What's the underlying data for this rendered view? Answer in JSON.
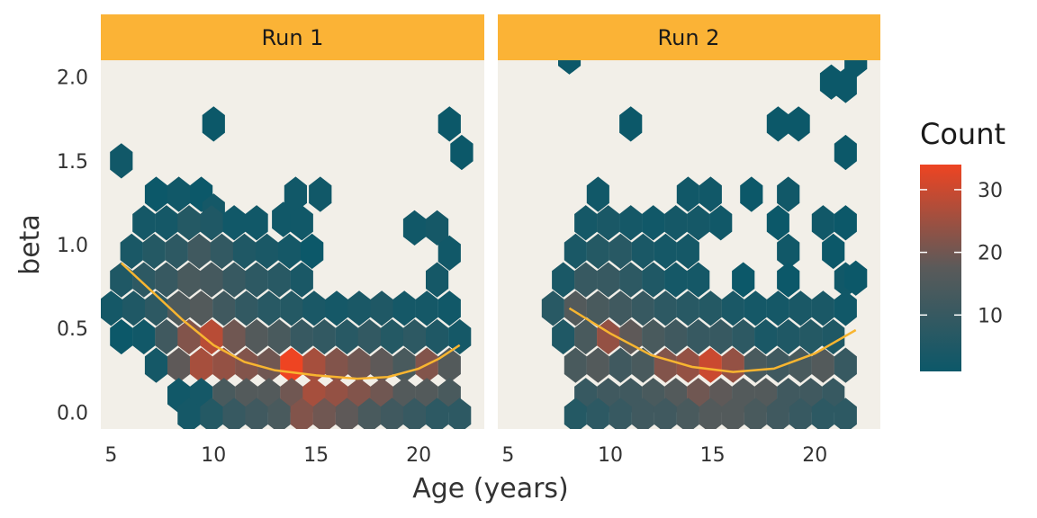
{
  "chart_data": {
    "type": "hexbin",
    "xlabel": "Age (years)",
    "ylabel": "beta",
    "xlim": [
      4.5,
      23.2
    ],
    "ylim": [
      -0.1,
      2.1
    ],
    "x_ticks": [
      5,
      10,
      15,
      20
    ],
    "y_ticks": [
      0.0,
      0.5,
      1.0,
      1.5,
      2.0
    ],
    "y_tick_labels": [
      "0.0",
      "0.5",
      "1.0",
      "1.5",
      "2.0"
    ],
    "grid": false,
    "hex_size": {
      "dx": 1.107,
      "dy": 0.17
    },
    "legend": {
      "title": "Count",
      "position": "right",
      "ticks": [
        10,
        20,
        30
      ],
      "range": [
        1,
        34
      ],
      "colors": {
        "low": "#0c5869",
        "mid": "#5a5a5a",
        "high": "#ee4422"
      }
    },
    "colors": {
      "panel_bg": "#f2efe8",
      "strip_bg": "#fbb336",
      "smooth_line": "#f8b530"
    },
    "panels": [
      {
        "label": "Run 1",
        "hexes": [
          [
            5.5,
            1.5,
            2
          ],
          [
            10.0,
            1.72,
            1
          ],
          [
            21.5,
            1.72,
            1
          ],
          [
            22.1,
            1.55,
            1
          ],
          [
            7.2,
            1.3,
            1
          ],
          [
            8.3,
            1.3,
            2
          ],
          [
            9.4,
            1.3,
            1
          ],
          [
            10.0,
            1.2,
            3
          ],
          [
            14.0,
            1.3,
            2
          ],
          [
            15.2,
            1.3,
            2
          ],
          [
            13.4,
            1.15,
            2
          ],
          [
            6.6,
            1.13,
            3
          ],
          [
            7.7,
            1.13,
            3
          ],
          [
            8.8,
            1.13,
            6
          ],
          [
            9.9,
            1.13,
            5
          ],
          [
            11.0,
            1.13,
            2
          ],
          [
            12.1,
            1.13,
            2
          ],
          [
            14.3,
            1.13,
            2
          ],
          [
            19.8,
            1.1,
            2
          ],
          [
            20.9,
            1.1,
            3
          ],
          [
            6.0,
            0.96,
            4
          ],
          [
            7.1,
            0.96,
            6
          ],
          [
            8.2,
            0.96,
            8
          ],
          [
            9.3,
            0.96,
            12
          ],
          [
            10.4,
            0.96,
            9
          ],
          [
            11.5,
            0.96,
            5
          ],
          [
            12.6,
            0.96,
            4
          ],
          [
            13.7,
            0.96,
            3
          ],
          [
            14.8,
            0.96,
            1
          ],
          [
            21.5,
            0.95,
            2
          ],
          [
            5.5,
            0.79,
            5
          ],
          [
            6.6,
            0.79,
            8
          ],
          [
            7.7,
            0.79,
            10
          ],
          [
            8.8,
            0.79,
            14
          ],
          [
            9.9,
            0.79,
            13
          ],
          [
            11.0,
            0.79,
            10
          ],
          [
            12.1,
            0.79,
            8
          ],
          [
            13.2,
            0.79,
            7
          ],
          [
            14.3,
            0.79,
            4
          ],
          [
            20.9,
            0.79,
            3
          ],
          [
            5.0,
            0.62,
            3
          ],
          [
            6.1,
            0.62,
            5
          ],
          [
            7.2,
            0.62,
            8
          ],
          [
            8.3,
            0.62,
            15
          ],
          [
            9.4,
            0.62,
            16
          ],
          [
            10.5,
            0.62,
            12
          ],
          [
            11.6,
            0.62,
            9
          ],
          [
            12.7,
            0.62,
            7
          ],
          [
            13.8,
            0.62,
            6
          ],
          [
            14.9,
            0.62,
            4
          ],
          [
            16.0,
            0.62,
            3
          ],
          [
            17.1,
            0.62,
            4
          ],
          [
            18.2,
            0.62,
            5
          ],
          [
            19.3,
            0.62,
            3
          ],
          [
            20.4,
            0.62,
            3
          ],
          [
            21.5,
            0.62,
            2
          ],
          [
            5.5,
            0.45,
            1
          ],
          [
            6.6,
            0.45,
            2
          ],
          [
            7.7,
            0.45,
            12
          ],
          [
            8.8,
            0.45,
            22
          ],
          [
            9.9,
            0.45,
            28
          ],
          [
            11.0,
            0.45,
            20
          ],
          [
            12.1,
            0.45,
            16
          ],
          [
            13.2,
            0.45,
            14
          ],
          [
            14.3,
            0.45,
            10
          ],
          [
            15.4,
            0.45,
            9
          ],
          [
            16.5,
            0.45,
            7
          ],
          [
            17.6,
            0.45,
            9
          ],
          [
            18.7,
            0.45,
            6
          ],
          [
            19.8,
            0.45,
            8
          ],
          [
            20.9,
            0.45,
            5
          ],
          [
            22.0,
            0.45,
            3
          ],
          [
            7.2,
            0.28,
            3
          ],
          [
            8.3,
            0.28,
            18
          ],
          [
            9.4,
            0.28,
            26
          ],
          [
            10.5,
            0.28,
            24
          ],
          [
            11.6,
            0.28,
            22
          ],
          [
            12.7,
            0.28,
            20
          ],
          [
            13.8,
            0.28,
            34
          ],
          [
            14.9,
            0.28,
            26
          ],
          [
            16.0,
            0.28,
            22
          ],
          [
            17.1,
            0.28,
            20
          ],
          [
            18.2,
            0.28,
            18
          ],
          [
            19.3,
            0.28,
            14
          ],
          [
            20.4,
            0.28,
            22
          ],
          [
            21.5,
            0.28,
            16
          ],
          [
            8.3,
            0.1,
            2
          ],
          [
            9.4,
            0.1,
            3
          ],
          [
            10.5,
            0.1,
            14
          ],
          [
            11.6,
            0.1,
            16
          ],
          [
            12.7,
            0.1,
            16
          ],
          [
            13.8,
            0.1,
            20
          ],
          [
            14.9,
            0.1,
            26
          ],
          [
            16.0,
            0.1,
            24
          ],
          [
            17.1,
            0.1,
            22
          ],
          [
            18.2,
            0.1,
            20
          ],
          [
            19.3,
            0.1,
            16
          ],
          [
            20.4,
            0.1,
            16
          ],
          [
            21.5,
            0.1,
            14
          ],
          [
            8.8,
            -0.02,
            3
          ],
          [
            9.9,
            -0.02,
            6
          ],
          [
            11.0,
            -0.02,
            10
          ],
          [
            12.1,
            -0.02,
            12
          ],
          [
            13.2,
            -0.02,
            14
          ],
          [
            14.3,
            -0.02,
            22
          ],
          [
            15.4,
            -0.02,
            20
          ],
          [
            16.5,
            -0.02,
            18
          ],
          [
            17.6,
            -0.02,
            14
          ],
          [
            18.7,
            -0.02,
            12
          ],
          [
            19.8,
            -0.02,
            10
          ],
          [
            20.9,
            -0.02,
            8
          ],
          [
            22.0,
            -0.02,
            8
          ]
        ],
        "smooth": {
          "x": [
            5.5,
            7,
            8.5,
            10,
            11.5,
            13,
            15,
            17,
            18.5,
            20,
            21,
            22
          ],
          "y": [
            0.89,
            0.72,
            0.55,
            0.4,
            0.3,
            0.25,
            0.22,
            0.2,
            0.21,
            0.26,
            0.32,
            0.4
          ]
        }
      },
      {
        "label": "Run 2",
        "hexes": [
          [
            8.0,
            2.12,
            1
          ],
          [
            20.8,
            1.97,
            1
          ],
          [
            21.5,
            1.95,
            1
          ],
          [
            22.0,
            2.1,
            1
          ],
          [
            11.0,
            1.72,
            1
          ],
          [
            18.2,
            1.72,
            1
          ],
          [
            19.2,
            1.72,
            1
          ],
          [
            21.5,
            1.55,
            1
          ],
          [
            16.9,
            1.3,
            1
          ],
          [
            18.7,
            1.3,
            2
          ],
          [
            9.4,
            1.3,
            2
          ],
          [
            13.8,
            1.3,
            2
          ],
          [
            14.9,
            1.3,
            2
          ],
          [
            8.8,
            1.13,
            3
          ],
          [
            9.9,
            1.13,
            4
          ],
          [
            11.0,
            1.13,
            3
          ],
          [
            12.1,
            1.13,
            2
          ],
          [
            13.2,
            1.13,
            3
          ],
          [
            14.3,
            1.13,
            3
          ],
          [
            15.4,
            1.13,
            2
          ],
          [
            18.2,
            1.13,
            1
          ],
          [
            20.4,
            1.13,
            2
          ],
          [
            21.5,
            1.13,
            1
          ],
          [
            8.3,
            0.96,
            4
          ],
          [
            9.4,
            0.96,
            6
          ],
          [
            10.5,
            0.96,
            7
          ],
          [
            11.6,
            0.96,
            4
          ],
          [
            12.7,
            0.96,
            3
          ],
          [
            13.8,
            0.96,
            3
          ],
          [
            18.7,
            0.96,
            2
          ],
          [
            20.9,
            0.96,
            1
          ],
          [
            7.7,
            0.79,
            4
          ],
          [
            8.8,
            0.79,
            10
          ],
          [
            9.9,
            0.79,
            10
          ],
          [
            11.0,
            0.79,
            8
          ],
          [
            12.1,
            0.79,
            5
          ],
          [
            13.2,
            0.79,
            3
          ],
          [
            14.3,
            0.79,
            3
          ],
          [
            16.5,
            0.79,
            1
          ],
          [
            18.7,
            0.79,
            1
          ],
          [
            21.5,
            0.79,
            2
          ],
          [
            22.0,
            0.8,
            1
          ],
          [
            7.2,
            0.62,
            7
          ],
          [
            8.3,
            0.62,
            16
          ],
          [
            9.4,
            0.62,
            14
          ],
          [
            10.5,
            0.62,
            12
          ],
          [
            11.6,
            0.62,
            10
          ],
          [
            12.7,
            0.62,
            8
          ],
          [
            13.8,
            0.62,
            7
          ],
          [
            14.9,
            0.62,
            6
          ],
          [
            16.0,
            0.62,
            4
          ],
          [
            17.1,
            0.62,
            3
          ],
          [
            18.2,
            0.62,
            3
          ],
          [
            19.3,
            0.62,
            4
          ],
          [
            20.4,
            0.62,
            4
          ],
          [
            21.5,
            0.62,
            2
          ],
          [
            7.7,
            0.45,
            5
          ],
          [
            8.8,
            0.45,
            14
          ],
          [
            9.9,
            0.45,
            24
          ],
          [
            11.0,
            0.45,
            18
          ],
          [
            12.1,
            0.45,
            14
          ],
          [
            13.2,
            0.45,
            12
          ],
          [
            14.3,
            0.45,
            10
          ],
          [
            15.4,
            0.45,
            10
          ],
          [
            16.5,
            0.45,
            8
          ],
          [
            17.6,
            0.45,
            4
          ],
          [
            18.7,
            0.45,
            5
          ],
          [
            19.8,
            0.45,
            6
          ],
          [
            20.9,
            0.45,
            5
          ],
          [
            8.3,
            0.28,
            14
          ],
          [
            9.4,
            0.28,
            16
          ],
          [
            10.5,
            0.28,
            12
          ],
          [
            11.6,
            0.28,
            14
          ],
          [
            12.7,
            0.28,
            22
          ],
          [
            13.8,
            0.28,
            24
          ],
          [
            14.9,
            0.28,
            30
          ],
          [
            16.0,
            0.28,
            24
          ],
          [
            17.1,
            0.28,
            14
          ],
          [
            18.2,
            0.28,
            12
          ],
          [
            19.3,
            0.28,
            14
          ],
          [
            20.4,
            0.28,
            16
          ],
          [
            21.5,
            0.28,
            10
          ],
          [
            8.8,
            0.1,
            10
          ],
          [
            9.9,
            0.1,
            12
          ],
          [
            11.0,
            0.1,
            12
          ],
          [
            12.1,
            0.1,
            14
          ],
          [
            13.2,
            0.1,
            16
          ],
          [
            14.3,
            0.1,
            20
          ],
          [
            15.4,
            0.1,
            18
          ],
          [
            16.5,
            0.1,
            16
          ],
          [
            17.6,
            0.1,
            16
          ],
          [
            18.7,
            0.1,
            12
          ],
          [
            19.8,
            0.1,
            12
          ],
          [
            20.9,
            0.1,
            10
          ],
          [
            8.3,
            -0.02,
            6
          ],
          [
            9.4,
            -0.02,
            8
          ],
          [
            10.5,
            -0.02,
            10
          ],
          [
            11.6,
            -0.02,
            12
          ],
          [
            12.7,
            -0.02,
            12
          ],
          [
            13.8,
            -0.02,
            14
          ],
          [
            14.9,
            -0.02,
            16
          ],
          [
            16.0,
            -0.02,
            16
          ],
          [
            17.1,
            -0.02,
            14
          ],
          [
            18.2,
            -0.02,
            12
          ],
          [
            19.3,
            -0.02,
            10
          ],
          [
            20.4,
            -0.02,
            8
          ],
          [
            21.5,
            -0.02,
            8
          ]
        ],
        "smooth": {
          "x": [
            8,
            10,
            12,
            14,
            16,
            18,
            20,
            22
          ],
          "y": [
            0.62,
            0.47,
            0.34,
            0.27,
            0.24,
            0.26,
            0.35,
            0.49
          ]
        }
      }
    ]
  }
}
